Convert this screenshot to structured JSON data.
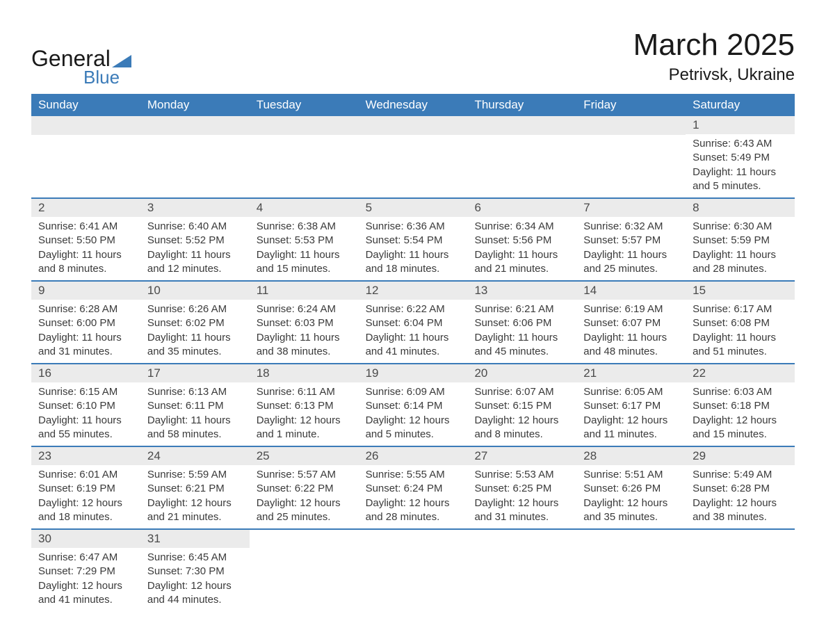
{
  "logo": {
    "general": "General",
    "blue": "Blue",
    "triangleColor": "#3b7bb8"
  },
  "header": {
    "monthTitle": "March 2025",
    "location": "Petrivsk, Ukraine"
  },
  "colors": {
    "headerBar": "#3b7bb8",
    "headerText": "#ffffff",
    "dayBarBg": "#ebebeb",
    "dayBarText": "#4a4a4a",
    "bodyText": "#3a3a3a",
    "rowDivider": "#3b7bb8",
    "pageBg": "#ffffff"
  },
  "weekdays": [
    "Sunday",
    "Monday",
    "Tuesday",
    "Wednesday",
    "Thursday",
    "Friday",
    "Saturday"
  ],
  "weeks": [
    [
      null,
      null,
      null,
      null,
      null,
      null,
      {
        "day": "1",
        "sunrise": "Sunrise: 6:43 AM",
        "sunset": "Sunset: 5:49 PM",
        "daylight1": "Daylight: 11 hours",
        "daylight2": "and 5 minutes."
      }
    ],
    [
      {
        "day": "2",
        "sunrise": "Sunrise: 6:41 AM",
        "sunset": "Sunset: 5:50 PM",
        "daylight1": "Daylight: 11 hours",
        "daylight2": "and 8 minutes."
      },
      {
        "day": "3",
        "sunrise": "Sunrise: 6:40 AM",
        "sunset": "Sunset: 5:52 PM",
        "daylight1": "Daylight: 11 hours",
        "daylight2": "and 12 minutes."
      },
      {
        "day": "4",
        "sunrise": "Sunrise: 6:38 AM",
        "sunset": "Sunset: 5:53 PM",
        "daylight1": "Daylight: 11 hours",
        "daylight2": "and 15 minutes."
      },
      {
        "day": "5",
        "sunrise": "Sunrise: 6:36 AM",
        "sunset": "Sunset: 5:54 PM",
        "daylight1": "Daylight: 11 hours",
        "daylight2": "and 18 minutes."
      },
      {
        "day": "6",
        "sunrise": "Sunrise: 6:34 AM",
        "sunset": "Sunset: 5:56 PM",
        "daylight1": "Daylight: 11 hours",
        "daylight2": "and 21 minutes."
      },
      {
        "day": "7",
        "sunrise": "Sunrise: 6:32 AM",
        "sunset": "Sunset: 5:57 PM",
        "daylight1": "Daylight: 11 hours",
        "daylight2": "and 25 minutes."
      },
      {
        "day": "8",
        "sunrise": "Sunrise: 6:30 AM",
        "sunset": "Sunset: 5:59 PM",
        "daylight1": "Daylight: 11 hours",
        "daylight2": "and 28 minutes."
      }
    ],
    [
      {
        "day": "9",
        "sunrise": "Sunrise: 6:28 AM",
        "sunset": "Sunset: 6:00 PM",
        "daylight1": "Daylight: 11 hours",
        "daylight2": "and 31 minutes."
      },
      {
        "day": "10",
        "sunrise": "Sunrise: 6:26 AM",
        "sunset": "Sunset: 6:02 PM",
        "daylight1": "Daylight: 11 hours",
        "daylight2": "and 35 minutes."
      },
      {
        "day": "11",
        "sunrise": "Sunrise: 6:24 AM",
        "sunset": "Sunset: 6:03 PM",
        "daylight1": "Daylight: 11 hours",
        "daylight2": "and 38 minutes."
      },
      {
        "day": "12",
        "sunrise": "Sunrise: 6:22 AM",
        "sunset": "Sunset: 6:04 PM",
        "daylight1": "Daylight: 11 hours",
        "daylight2": "and 41 minutes."
      },
      {
        "day": "13",
        "sunrise": "Sunrise: 6:21 AM",
        "sunset": "Sunset: 6:06 PM",
        "daylight1": "Daylight: 11 hours",
        "daylight2": "and 45 minutes."
      },
      {
        "day": "14",
        "sunrise": "Sunrise: 6:19 AM",
        "sunset": "Sunset: 6:07 PM",
        "daylight1": "Daylight: 11 hours",
        "daylight2": "and 48 minutes."
      },
      {
        "day": "15",
        "sunrise": "Sunrise: 6:17 AM",
        "sunset": "Sunset: 6:08 PM",
        "daylight1": "Daylight: 11 hours",
        "daylight2": "and 51 minutes."
      }
    ],
    [
      {
        "day": "16",
        "sunrise": "Sunrise: 6:15 AM",
        "sunset": "Sunset: 6:10 PM",
        "daylight1": "Daylight: 11 hours",
        "daylight2": "and 55 minutes."
      },
      {
        "day": "17",
        "sunrise": "Sunrise: 6:13 AM",
        "sunset": "Sunset: 6:11 PM",
        "daylight1": "Daylight: 11 hours",
        "daylight2": "and 58 minutes."
      },
      {
        "day": "18",
        "sunrise": "Sunrise: 6:11 AM",
        "sunset": "Sunset: 6:13 PM",
        "daylight1": "Daylight: 12 hours",
        "daylight2": "and 1 minute."
      },
      {
        "day": "19",
        "sunrise": "Sunrise: 6:09 AM",
        "sunset": "Sunset: 6:14 PM",
        "daylight1": "Daylight: 12 hours",
        "daylight2": "and 5 minutes."
      },
      {
        "day": "20",
        "sunrise": "Sunrise: 6:07 AM",
        "sunset": "Sunset: 6:15 PM",
        "daylight1": "Daylight: 12 hours",
        "daylight2": "and 8 minutes."
      },
      {
        "day": "21",
        "sunrise": "Sunrise: 6:05 AM",
        "sunset": "Sunset: 6:17 PM",
        "daylight1": "Daylight: 12 hours",
        "daylight2": "and 11 minutes."
      },
      {
        "day": "22",
        "sunrise": "Sunrise: 6:03 AM",
        "sunset": "Sunset: 6:18 PM",
        "daylight1": "Daylight: 12 hours",
        "daylight2": "and 15 minutes."
      }
    ],
    [
      {
        "day": "23",
        "sunrise": "Sunrise: 6:01 AM",
        "sunset": "Sunset: 6:19 PM",
        "daylight1": "Daylight: 12 hours",
        "daylight2": "and 18 minutes."
      },
      {
        "day": "24",
        "sunrise": "Sunrise: 5:59 AM",
        "sunset": "Sunset: 6:21 PM",
        "daylight1": "Daylight: 12 hours",
        "daylight2": "and 21 minutes."
      },
      {
        "day": "25",
        "sunrise": "Sunrise: 5:57 AM",
        "sunset": "Sunset: 6:22 PM",
        "daylight1": "Daylight: 12 hours",
        "daylight2": "and 25 minutes."
      },
      {
        "day": "26",
        "sunrise": "Sunrise: 5:55 AM",
        "sunset": "Sunset: 6:24 PM",
        "daylight1": "Daylight: 12 hours",
        "daylight2": "and 28 minutes."
      },
      {
        "day": "27",
        "sunrise": "Sunrise: 5:53 AM",
        "sunset": "Sunset: 6:25 PM",
        "daylight1": "Daylight: 12 hours",
        "daylight2": "and 31 minutes."
      },
      {
        "day": "28",
        "sunrise": "Sunrise: 5:51 AM",
        "sunset": "Sunset: 6:26 PM",
        "daylight1": "Daylight: 12 hours",
        "daylight2": "and 35 minutes."
      },
      {
        "day": "29",
        "sunrise": "Sunrise: 5:49 AM",
        "sunset": "Sunset: 6:28 PM",
        "daylight1": "Daylight: 12 hours",
        "daylight2": "and 38 minutes."
      }
    ],
    [
      {
        "day": "30",
        "sunrise": "Sunrise: 6:47 AM",
        "sunset": "Sunset: 7:29 PM",
        "daylight1": "Daylight: 12 hours",
        "daylight2": "and 41 minutes."
      },
      {
        "day": "31",
        "sunrise": "Sunrise: 6:45 AM",
        "sunset": "Sunset: 7:30 PM",
        "daylight1": "Daylight: 12 hours",
        "daylight2": "and 44 minutes."
      },
      null,
      null,
      null,
      null,
      null
    ]
  ]
}
